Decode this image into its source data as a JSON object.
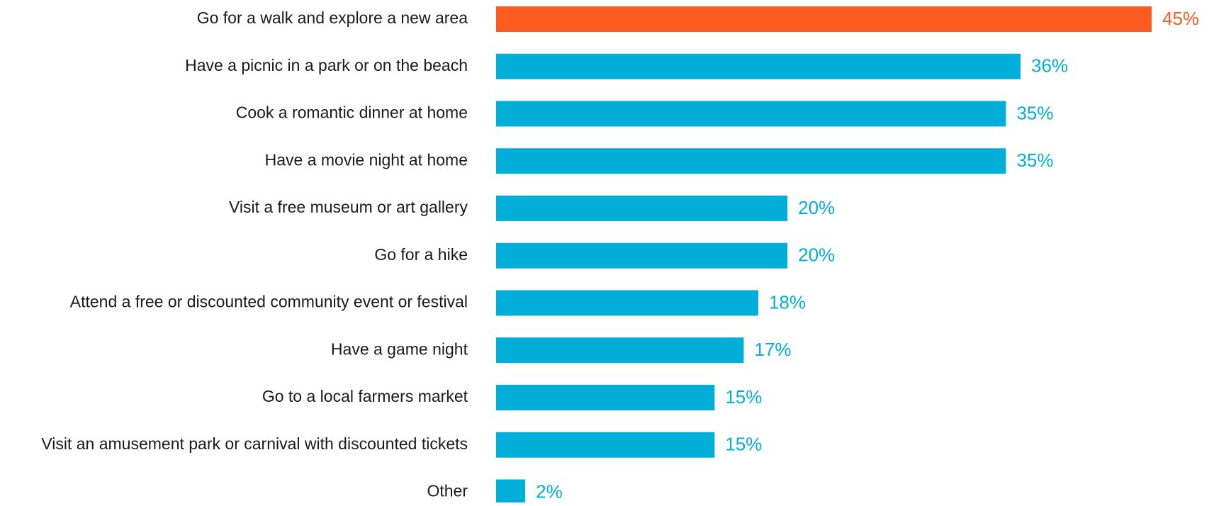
{
  "chart_data": {
    "type": "bar",
    "orientation": "horizontal",
    "categories": [
      "Go for a walk and explore a new area",
      "Have a picnic in a park or on the beach",
      "Cook a romantic dinner at home",
      "Have a movie night at home",
      "Visit a free museum or art gallery",
      "Go for a hike",
      "Attend a free or discounted community event or festival",
      "Have a game night",
      "Go to a local farmers market",
      "Visit an amusement park or carnival with discounted tickets",
      "Other"
    ],
    "values": [
      45,
      36,
      35,
      35,
      20,
      20,
      18,
      17,
      15,
      15,
      2
    ],
    "value_labels": [
      "45%",
      "36%",
      "35%",
      "35%",
      "20%",
      "20%",
      "18%",
      "17%",
      "15%",
      "15%",
      "2%"
    ],
    "colors": [
      "#ff5a1f",
      "#00afd9",
      "#00afd9",
      "#00afd9",
      "#00afd9",
      "#00afd9",
      "#00afd9",
      "#00afd9",
      "#00afd9",
      "#00afd9",
      "#00afd9"
    ]
  }
}
